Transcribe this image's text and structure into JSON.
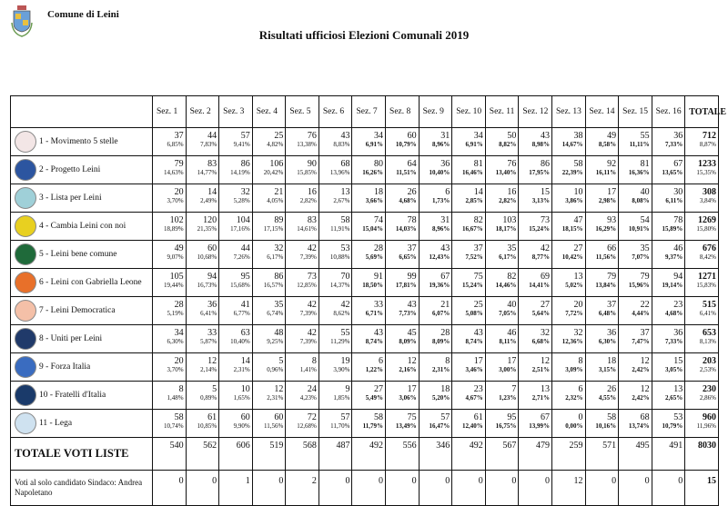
{
  "header": {
    "municipality": "Comune di Leini",
    "title": "Risultati ufficiosi Elezioni Comunali 2019"
  },
  "table": {
    "columns": [
      "Sez. 1",
      "Sez. 2",
      "Sez. 3",
      "Sez. 4",
      "Sez. 5",
      "Sez. 6",
      "Sez. 7",
      "Sez. 8",
      "Sez. 9",
      "Sez. 10",
      "Sez. 11",
      "Sez. 12",
      "Sez. 13",
      "Sez. 14",
      "Sez. 15",
      "Sez. 16",
      "TOTALE"
    ],
    "rows": [
      {
        "name": "1 - Movimento 5 stelle",
        "logo": "m5s-logo",
        "color": "#f3e6e6",
        "votes": [
          "37",
          "44",
          "57",
          "25",
          "76",
          "43",
          "34",
          "60",
          "31",
          "34",
          "50",
          "43",
          "38",
          "49",
          "55",
          "36"
        ],
        "pcts": [
          "6,85%",
          "7,83%",
          "9,41%",
          "4,82%",
          "13,38%",
          "8,83%",
          "6,91%",
          "10,79%",
          "8,96%",
          "6,91%",
          "8,82%",
          "8,98%",
          "14,67%",
          "8,58%",
          "11,11%",
          "7,33%"
        ],
        "total": "712",
        "total_pct": "8,87%"
      },
      {
        "name": "2 - Progetto Leini",
        "logo": "progetto-leini-logo",
        "color": "#2c55a0",
        "votes": [
          "79",
          "83",
          "86",
          "106",
          "90",
          "68",
          "80",
          "64",
          "36",
          "81",
          "76",
          "86",
          "58",
          "92",
          "81",
          "67"
        ],
        "pcts": [
          "14,63%",
          "14,77%",
          "14,19%",
          "20,42%",
          "15,85%",
          "13,96%",
          "16,26%",
          "11,51%",
          "10,40%",
          "16,46%",
          "13,40%",
          "17,95%",
          "22,39%",
          "16,11%",
          "16,36%",
          "13,65%"
        ],
        "total": "1233",
        "total_pct": "15,35%"
      },
      {
        "name": "3 - Lista per Leini",
        "logo": "lista-per-leini-logo",
        "color": "#9fd0d8",
        "votes": [
          "20",
          "14",
          "32",
          "21",
          "16",
          "13",
          "18",
          "26",
          "6",
          "14",
          "16",
          "15",
          "10",
          "17",
          "40",
          "30"
        ],
        "pcts": [
          "3,70%",
          "2,49%",
          "5,28%",
          "4,05%",
          "2,82%",
          "2,67%",
          "3,66%",
          "4,68%",
          "1,73%",
          "2,85%",
          "2,82%",
          "3,13%",
          "3,86%",
          "2,98%",
          "8,08%",
          "6,11%"
        ],
        "total": "308",
        "total_pct": "3,84%"
      },
      {
        "name": "4 - Cambia Leini con noi",
        "logo": "cambia-leini-logo",
        "color": "#e8d020",
        "votes": [
          "102",
          "120",
          "104",
          "89",
          "83",
          "58",
          "74",
          "78",
          "31",
          "82",
          "103",
          "73",
          "47",
          "93",
          "54",
          "78"
        ],
        "pcts": [
          "18,89%",
          "21,35%",
          "17,16%",
          "17,15%",
          "14,61%",
          "11,91%",
          "15,04%",
          "14,03%",
          "8,96%",
          "16,67%",
          "18,17%",
          "15,24%",
          "18,15%",
          "16,29%",
          "10,91%",
          "15,89%"
        ],
        "total": "1269",
        "total_pct": "15,80%"
      },
      {
        "name": "5 - Leini bene comune",
        "logo": "leini-bene-comune-logo",
        "color": "#1f6a3a",
        "votes": [
          "49",
          "60",
          "44",
          "32",
          "42",
          "53",
          "28",
          "37",
          "43",
          "37",
          "35",
          "42",
          "27",
          "66",
          "35",
          "46"
        ],
        "pcts": [
          "9,07%",
          "10,68%",
          "7,26%",
          "6,17%",
          "7,39%",
          "10,88%",
          "5,69%",
          "6,65%",
          "12,43%",
          "7,52%",
          "6,17%",
          "8,77%",
          "10,42%",
          "11,56%",
          "7,07%",
          "9,37%"
        ],
        "total": "676",
        "total_pct": "8,42%"
      },
      {
        "name": "6 - Leini con Gabriella Leone",
        "logo": "leini-con-gabriella-leone-logo",
        "color": "#e8702a",
        "votes": [
          "105",
          "94",
          "95",
          "86",
          "73",
          "70",
          "91",
          "99",
          "67",
          "75",
          "82",
          "69",
          "13",
          "79",
          "79",
          "94"
        ],
        "pcts": [
          "19,44%",
          "16,73%",
          "15,68%",
          "16,57%",
          "12,85%",
          "14,37%",
          "18,50%",
          "17,81%",
          "19,36%",
          "15,24%",
          "14,46%",
          "14,41%",
          "5,02%",
          "13,84%",
          "15,96%",
          "19,14%"
        ],
        "total": "1271",
        "total_pct": "15,83%"
      },
      {
        "name": "7 - Leini Democratica",
        "logo": "leini-democratica-logo",
        "color": "#f4c0a8",
        "votes": [
          "28",
          "36",
          "41",
          "35",
          "42",
          "42",
          "33",
          "43",
          "21",
          "25",
          "40",
          "27",
          "20",
          "37",
          "22",
          "23"
        ],
        "pcts": [
          "5,19%",
          "6,41%",
          "6,77%",
          "6,74%",
          "7,39%",
          "8,62%",
          "6,71%",
          "7,73%",
          "6,07%",
          "5,08%",
          "7,05%",
          "5,64%",
          "7,72%",
          "6,48%",
          "4,44%",
          "4,68%"
        ],
        "total": "515",
        "total_pct": "6,41%"
      },
      {
        "name": "8 - Uniti per Leini",
        "logo": "uniti-per-leini-logo",
        "color": "#203a6a",
        "votes": [
          "34",
          "33",
          "63",
          "48",
          "42",
          "55",
          "43",
          "45",
          "28",
          "43",
          "46",
          "32",
          "32",
          "36",
          "37",
          "36"
        ],
        "pcts": [
          "6,30%",
          "5,87%",
          "10,40%",
          "9,25%",
          "7,39%",
          "11,29%",
          "8,74%",
          "8,09%",
          "8,09%",
          "8,74%",
          "8,11%",
          "6,68%",
          "12,36%",
          "6,30%",
          "7,47%",
          "7,33%"
        ],
        "total": "653",
        "total_pct": "8,13%"
      },
      {
        "name": "9 - Forza Italia",
        "logo": "forza-italia-logo",
        "color": "#3a6cc0",
        "votes": [
          "20",
          "12",
          "14",
          "5",
          "8",
          "19",
          "6",
          "12",
          "8",
          "17",
          "17",
          "12",
          "8",
          "18",
          "12",
          "15"
        ],
        "pcts": [
          "3,70%",
          "2,14%",
          "2,31%",
          "0,96%",
          "1,41%",
          "3,90%",
          "1,22%",
          "2,16%",
          "2,31%",
          "3,46%",
          "3,00%",
          "2,51%",
          "3,09%",
          "3,15%",
          "2,42%",
          "3,05%"
        ],
        "total": "203",
        "total_pct": "2,53%"
      },
      {
        "name": "10 - Fratelli d'Italia",
        "logo": "fratelli-d-italia-logo",
        "color": "#1a3a6a",
        "votes": [
          "8",
          "5",
          "10",
          "12",
          "24",
          "9",
          "27",
          "17",
          "18",
          "23",
          "7",
          "13",
          "6",
          "26",
          "12",
          "13"
        ],
        "pcts": [
          "1,48%",
          "0,89%",
          "1,65%",
          "2,31%",
          "4,23%",
          "1,85%",
          "5,49%",
          "3,06%",
          "5,20%",
          "4,67%",
          "1,23%",
          "2,71%",
          "2,32%",
          "4,55%",
          "2,42%",
          "2,65%"
        ],
        "total": "230",
        "total_pct": "2,86%"
      },
      {
        "name": "11 - Lega",
        "logo": "lega-logo",
        "color": "#cfe2f0",
        "votes": [
          "58",
          "61",
          "60",
          "60",
          "72",
          "57",
          "58",
          "75",
          "57",
          "61",
          "95",
          "67",
          "0",
          "58",
          "68",
          "53"
        ],
        "pcts": [
          "10,74%",
          "10,85%",
          "9,90%",
          "11,56%",
          "12,68%",
          "11,70%",
          "11,79%",
          "13,49%",
          "16,47%",
          "12,40%",
          "16,75%",
          "13,99%",
          "0,00%",
          "10,16%",
          "13,74%",
          "10,79%"
        ],
        "total": "960",
        "total_pct": "11,96%"
      }
    ],
    "totals": {
      "label": "TOTALE VOTI LISTE",
      "values": [
        "540",
        "562",
        "606",
        "519",
        "568",
        "487",
        "492",
        "556",
        "346",
        "492",
        "567",
        "479",
        "259",
        "571",
        "495",
        "491"
      ],
      "total": "8030"
    },
    "mayor_only": {
      "label": "Voti al solo candidato Sindaco: Andrea Napoletano",
      "values": [
        "0",
        "0",
        "1",
        "0",
        "2",
        "0",
        "0",
        "0",
        "0",
        "0",
        "0",
        "0",
        "12",
        "0",
        "0",
        "0"
      ],
      "total": "15"
    }
  }
}
